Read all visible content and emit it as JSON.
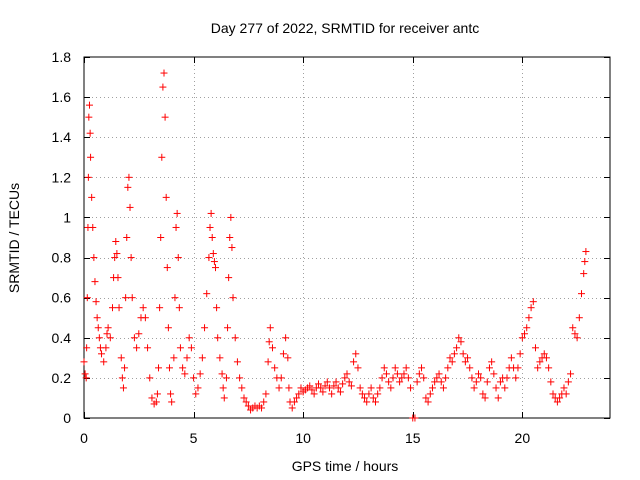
{
  "chart_data": {
    "type": "scatter",
    "title": "Day 277 of 2022, SRMTID for receiver antc",
    "xlabel": "GPS time / hours",
    "ylabel": "SRMTID / TECUs",
    "xlim": [
      0,
      24
    ],
    "ylim": [
      0,
      1.8
    ],
    "xticks": [
      0,
      5,
      10,
      15,
      20
    ],
    "xtick_labels": [
      "0",
      "5",
      "10",
      "15",
      "20"
    ],
    "yticks": [
      0,
      0.2,
      0.4,
      0.6,
      0.8,
      1,
      1.2,
      1.4,
      1.6,
      1.8
    ],
    "ytick_labels": [
      "0",
      "0.2",
      "0.4",
      "0.6",
      "0.8",
      "1",
      "1.2",
      "1.4",
      "1.6",
      "1.8"
    ],
    "grid": true,
    "marker": "+",
    "marker_color": "#ff0000",
    "series": [
      {
        "name": "SRMTID",
        "points": [
          [
            0.0,
            0.28
          ],
          [
            0.05,
            0.22
          ],
          [
            0.1,
            0.2
          ],
          [
            0.12,
            0.35
          ],
          [
            0.15,
            0.6
          ],
          [
            0.18,
            0.95
          ],
          [
            0.2,
            1.2
          ],
          [
            0.22,
            1.5
          ],
          [
            0.25,
            1.56
          ],
          [
            0.28,
            1.42
          ],
          [
            0.3,
            1.3
          ],
          [
            0.35,
            1.1
          ],
          [
            0.4,
            0.95
          ],
          [
            0.45,
            0.8
          ],
          [
            0.5,
            0.68
          ],
          [
            0.55,
            0.58
          ],
          [
            0.6,
            0.5
          ],
          [
            0.65,
            0.45
          ],
          [
            0.7,
            0.4
          ],
          [
            0.75,
            0.35
          ],
          [
            0.8,
            0.32
          ],
          [
            0.9,
            0.28
          ],
          [
            1.0,
            0.35
          ],
          [
            1.05,
            0.42
          ],
          [
            1.1,
            0.45
          ],
          [
            1.2,
            0.4
          ],
          [
            1.3,
            0.55
          ],
          [
            1.35,
            0.7
          ],
          [
            1.4,
            0.8
          ],
          [
            1.45,
            0.88
          ],
          [
            1.5,
            0.82
          ],
          [
            1.55,
            0.7
          ],
          [
            1.6,
            0.55
          ],
          [
            1.7,
            0.3
          ],
          [
            1.75,
            0.2
          ],
          [
            1.8,
            0.15
          ],
          [
            1.85,
            0.25
          ],
          [
            1.9,
            0.6
          ],
          [
            1.95,
            0.9
          ],
          [
            2.0,
            1.15
          ],
          [
            2.05,
            1.2
          ],
          [
            2.1,
            1.05
          ],
          [
            2.15,
            0.8
          ],
          [
            2.2,
            0.6
          ],
          [
            2.3,
            0.4
          ],
          [
            2.4,
            0.35
          ],
          [
            2.5,
            0.42
          ],
          [
            2.6,
            0.5
          ],
          [
            2.7,
            0.55
          ],
          [
            2.8,
            0.5
          ],
          [
            2.9,
            0.35
          ],
          [
            3.0,
            0.2
          ],
          [
            3.1,
            0.1
          ],
          [
            3.2,
            0.07
          ],
          [
            3.3,
            0.08
          ],
          [
            3.35,
            0.12
          ],
          [
            3.4,
            0.25
          ],
          [
            3.45,
            0.55
          ],
          [
            3.5,
            0.9
          ],
          [
            3.55,
            1.3
          ],
          [
            3.6,
            1.65
          ],
          [
            3.65,
            1.72
          ],
          [
            3.7,
            1.5
          ],
          [
            3.75,
            1.1
          ],
          [
            3.8,
            0.75
          ],
          [
            3.85,
            0.45
          ],
          [
            3.9,
            0.25
          ],
          [
            3.95,
            0.12
          ],
          [
            4.0,
            0.08
          ],
          [
            4.1,
            0.3
          ],
          [
            4.15,
            0.6
          ],
          [
            4.2,
            0.95
          ],
          [
            4.25,
            1.02
          ],
          [
            4.3,
            0.8
          ],
          [
            4.35,
            0.55
          ],
          [
            4.4,
            0.35
          ],
          [
            4.5,
            0.25
          ],
          [
            4.6,
            0.22
          ],
          [
            4.7,
            0.3
          ],
          [
            4.8,
            0.4
          ],
          [
            4.9,
            0.35
          ],
          [
            5.0,
            0.2
          ],
          [
            5.1,
            0.12
          ],
          [
            5.2,
            0.15
          ],
          [
            5.3,
            0.22
          ],
          [
            5.4,
            0.3
          ],
          [
            5.5,
            0.45
          ],
          [
            5.6,
            0.62
          ],
          [
            5.7,
            0.8
          ],
          [
            5.75,
            0.95
          ],
          [
            5.8,
            1.02
          ],
          [
            5.85,
            0.9
          ],
          [
            5.9,
            0.82
          ],
          [
            5.95,
            0.78
          ],
          [
            6.0,
            0.75
          ],
          [
            6.05,
            0.55
          ],
          [
            6.1,
            0.4
          ],
          [
            6.2,
            0.3
          ],
          [
            6.3,
            0.22
          ],
          [
            6.35,
            0.15
          ],
          [
            6.4,
            0.1
          ],
          [
            6.5,
            0.2
          ],
          [
            6.55,
            0.45
          ],
          [
            6.6,
            0.7
          ],
          [
            6.65,
            0.9
          ],
          [
            6.7,
            1.0
          ],
          [
            6.75,
            0.85
          ],
          [
            6.8,
            0.6
          ],
          [
            6.9,
            0.4
          ],
          [
            7.0,
            0.28
          ],
          [
            7.1,
            0.2
          ],
          [
            7.2,
            0.15
          ],
          [
            7.3,
            0.1
          ],
          [
            7.4,
            0.08
          ],
          [
            7.5,
            0.06
          ],
          [
            7.6,
            0.04
          ],
          [
            7.7,
            0.05
          ],
          [
            7.8,
            0.06
          ],
          [
            7.9,
            0.05
          ],
          [
            8.0,
            0.06
          ],
          [
            8.1,
            0.05
          ],
          [
            8.2,
            0.08
          ],
          [
            8.3,
            0.12
          ],
          [
            8.4,
            0.28
          ],
          [
            8.45,
            0.38
          ],
          [
            8.5,
            0.45
          ],
          [
            8.6,
            0.35
          ],
          [
            8.7,
            0.25
          ],
          [
            8.8,
            0.2
          ],
          [
            8.9,
            0.15
          ],
          [
            9.0,
            0.2
          ],
          [
            9.1,
            0.32
          ],
          [
            9.2,
            0.4
          ],
          [
            9.3,
            0.3
          ],
          [
            9.35,
            0.15
          ],
          [
            9.4,
            0.08
          ],
          [
            9.5,
            0.05
          ],
          [
            9.6,
            0.08
          ],
          [
            9.7,
            0.1
          ],
          [
            9.8,
            0.12
          ],
          [
            9.9,
            0.15
          ],
          [
            10.0,
            0.13
          ],
          [
            10.1,
            0.14
          ],
          [
            10.2,
            0.15
          ],
          [
            10.3,
            0.16
          ],
          [
            10.4,
            0.14
          ],
          [
            10.5,
            0.12
          ],
          [
            10.6,
            0.15
          ],
          [
            10.7,
            0.17
          ],
          [
            10.8,
            0.15
          ],
          [
            10.9,
            0.13
          ],
          [
            11.0,
            0.16
          ],
          [
            11.1,
            0.18
          ],
          [
            11.2,
            0.15
          ],
          [
            11.3,
            0.12
          ],
          [
            11.4,
            0.16
          ],
          [
            11.5,
            0.18
          ],
          [
            11.6,
            0.15
          ],
          [
            11.7,
            0.13
          ],
          [
            11.8,
            0.17
          ],
          [
            11.9,
            0.2
          ],
          [
            12.0,
            0.22
          ],
          [
            12.1,
            0.18
          ],
          [
            12.2,
            0.16
          ],
          [
            12.3,
            0.28
          ],
          [
            12.4,
            0.32
          ],
          [
            12.5,
            0.25
          ],
          [
            12.6,
            0.15
          ],
          [
            12.7,
            0.12
          ],
          [
            12.8,
            0.1
          ],
          [
            12.9,
            0.08
          ],
          [
            13.0,
            0.12
          ],
          [
            13.1,
            0.15
          ],
          [
            13.2,
            0.1
          ],
          [
            13.3,
            0.08
          ],
          [
            13.4,
            0.12
          ],
          [
            13.5,
            0.15
          ],
          [
            13.6,
            0.2
          ],
          [
            13.7,
            0.25
          ],
          [
            13.8,
            0.22
          ],
          [
            13.9,
            0.18
          ],
          [
            14.0,
            0.15
          ],
          [
            14.1,
            0.2
          ],
          [
            14.2,
            0.25
          ],
          [
            14.3,
            0.22
          ],
          [
            14.4,
            0.18
          ],
          [
            14.5,
            0.2
          ],
          [
            14.6,
            0.22
          ],
          [
            14.7,
            0.25
          ],
          [
            14.8,
            0.2
          ],
          [
            14.9,
            0.15
          ],
          [
            15.0,
            0.0
          ],
          [
            15.1,
            0.0
          ],
          [
            15.2,
            0.18
          ],
          [
            15.3,
            0.22
          ],
          [
            15.4,
            0.25
          ],
          [
            15.5,
            0.2
          ],
          [
            15.6,
            0.1
          ],
          [
            15.7,
            0.08
          ],
          [
            15.8,
            0.12
          ],
          [
            15.9,
            0.15
          ],
          [
            16.0,
            0.18
          ],
          [
            16.1,
            0.2
          ],
          [
            16.2,
            0.22
          ],
          [
            16.3,
            0.18
          ],
          [
            16.4,
            0.15
          ],
          [
            16.5,
            0.2
          ],
          [
            16.6,
            0.25
          ],
          [
            16.7,
            0.3
          ],
          [
            16.8,
            0.28
          ],
          [
            16.9,
            0.32
          ],
          [
            17.0,
            0.35
          ],
          [
            17.1,
            0.4
          ],
          [
            17.2,
            0.38
          ],
          [
            17.3,
            0.32
          ],
          [
            17.4,
            0.28
          ],
          [
            17.5,
            0.3
          ],
          [
            17.6,
            0.25
          ],
          [
            17.7,
            0.2
          ],
          [
            17.8,
            0.15
          ],
          [
            17.9,
            0.18
          ],
          [
            18.0,
            0.22
          ],
          [
            18.1,
            0.2
          ],
          [
            18.2,
            0.12
          ],
          [
            18.3,
            0.1
          ],
          [
            18.4,
            0.18
          ],
          [
            18.5,
            0.25
          ],
          [
            18.6,
            0.28
          ],
          [
            18.7,
            0.22
          ],
          [
            18.8,
            0.15
          ],
          [
            18.9,
            0.1
          ],
          [
            19.0,
            0.18
          ],
          [
            19.1,
            0.2
          ],
          [
            19.2,
            0.15
          ],
          [
            19.3,
            0.2
          ],
          [
            19.4,
            0.25
          ],
          [
            19.5,
            0.3
          ],
          [
            19.6,
            0.25
          ],
          [
            19.7,
            0.2
          ],
          [
            19.8,
            0.25
          ],
          [
            19.9,
            0.32
          ],
          [
            20.0,
            0.4
          ],
          [
            20.1,
            0.42
          ],
          [
            20.2,
            0.45
          ],
          [
            20.3,
            0.5
          ],
          [
            20.4,
            0.55
          ],
          [
            20.5,
            0.58
          ],
          [
            20.6,
            0.35
          ],
          [
            20.7,
            0.25
          ],
          [
            20.8,
            0.28
          ],
          [
            20.9,
            0.3
          ],
          [
            21.0,
            0.32
          ],
          [
            21.1,
            0.3
          ],
          [
            21.2,
            0.25
          ],
          [
            21.3,
            0.18
          ],
          [
            21.4,
            0.12
          ],
          [
            21.5,
            0.1
          ],
          [
            21.6,
            0.08
          ],
          [
            21.7,
            0.1
          ],
          [
            21.8,
            0.12
          ],
          [
            21.9,
            0.15
          ],
          [
            22.0,
            0.12
          ],
          [
            22.1,
            0.18
          ],
          [
            22.2,
            0.22
          ],
          [
            22.3,
            0.45
          ],
          [
            22.4,
            0.42
          ],
          [
            22.5,
            0.4
          ],
          [
            22.6,
            0.5
          ],
          [
            22.7,
            0.62
          ],
          [
            22.8,
            0.72
          ],
          [
            22.85,
            0.78
          ],
          [
            22.9,
            0.83
          ]
        ]
      }
    ]
  }
}
